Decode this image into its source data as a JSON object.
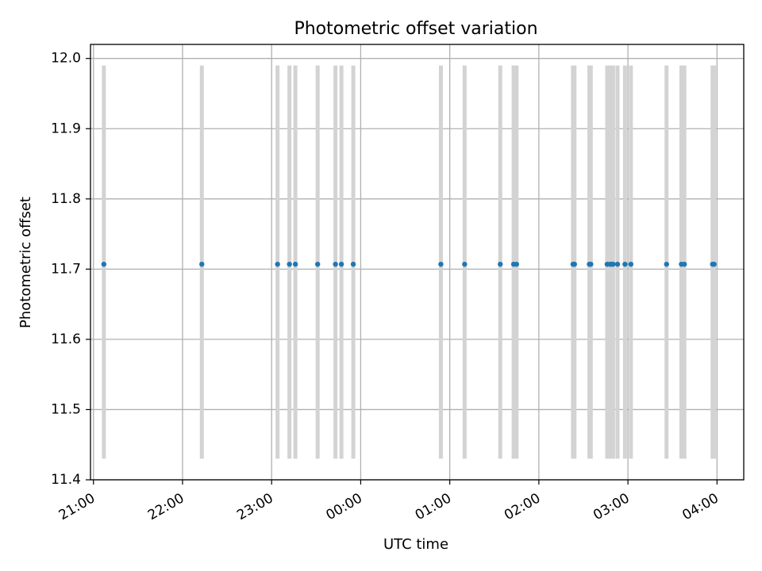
{
  "chart_data": {
    "type": "scatter",
    "title": "Photometric offset variation",
    "xlabel": "UTC time",
    "ylabel": "Photometric offset",
    "xlim": [
      "20:58",
      "04:18"
    ],
    "ylim": [
      11.4,
      12.02
    ],
    "x_ticks": [
      "21:00",
      "22:00",
      "23:00",
      "00:00",
      "01:00",
      "02:00",
      "03:00",
      "04:00"
    ],
    "y_ticks": [
      11.4,
      11.5,
      11.6,
      11.7,
      11.8,
      11.9,
      12.0
    ],
    "grid": true,
    "errorbar_range": [
      11.43,
      11.99
    ],
    "series": [
      {
        "x": [
          "21:07",
          "22:13",
          "23:04",
          "23:12",
          "23:16",
          "23:31",
          "23:43",
          "23:47",
          "23:55",
          "00:54",
          "01:10",
          "01:34",
          "01:43",
          "01:45",
          "02:23",
          "02:24",
          "02:34",
          "02:35",
          "02:46",
          "02:48",
          "02:49",
          "02:50",
          "02:53",
          "02:58",
          "03:02",
          "03:26",
          "03:36",
          "03:38",
          "03:57",
          "03:58"
        ],
        "y": [
          11.707,
          11.707,
          11.707,
          11.707,
          11.707,
          11.707,
          11.707,
          11.707,
          11.707,
          11.707,
          11.707,
          11.707,
          11.707,
          11.707,
          11.707,
          11.707,
          11.707,
          11.707,
          11.707,
          11.707,
          11.707,
          11.707,
          11.707,
          11.707,
          11.707,
          11.707,
          11.707,
          11.707,
          11.707,
          11.707
        ],
        "color": "#1f77b4",
        "errorbar_color": "#d3d3d3"
      }
    ]
  }
}
